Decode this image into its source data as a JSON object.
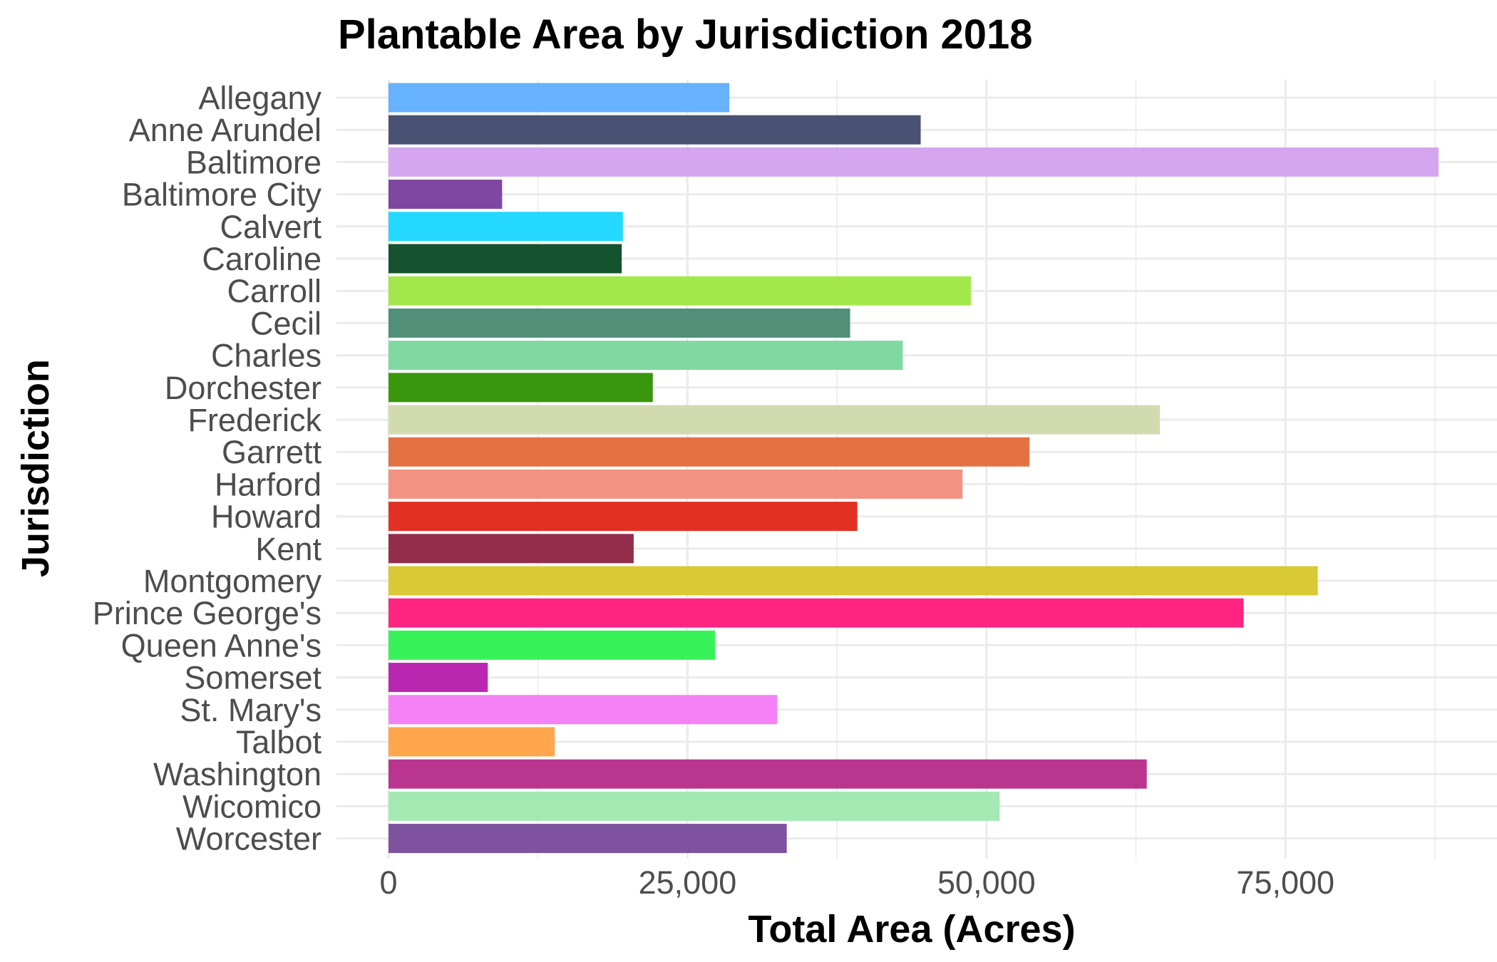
{
  "chart_data": {
    "type": "bar",
    "orientation": "horizontal",
    "title": "Plantable Area by Jurisdiction 2018",
    "xlabel": "Total Area (Acres)",
    "ylabel": "Jurisdiction",
    "xlim": [
      0,
      90000
    ],
    "xticks": [
      0,
      25000,
      50000,
      75000
    ],
    "xtick_labels": [
      "0",
      "25,000",
      "50,000",
      "75,000"
    ],
    "grid": true,
    "legend": "none",
    "categories": [
      "Allegany",
      "Anne Arundel",
      "Baltimore",
      "Baltimore City",
      "Calvert",
      "Caroline",
      "Carroll",
      "Cecil",
      "Charles",
      "Dorchester",
      "Frederick",
      "Garrett",
      "Harford",
      "Howard",
      "Kent",
      "Montgomery",
      "Prince George's",
      "Queen Anne's",
      "Somerset",
      "St. Mary's",
      "Talbot",
      "Washington",
      "Wicomico",
      "Worcester"
    ],
    "values": [
      28500,
      44500,
      87800,
      9500,
      19600,
      19500,
      48700,
      38600,
      43000,
      22100,
      64500,
      53600,
      48000,
      39200,
      20500,
      77700,
      71500,
      27300,
      8300,
      32500,
      13900,
      63400,
      51100,
      33300
    ],
    "colors": [
      "#66B2FF",
      "#4A5273",
      "#D5A6F0",
      "#7F47A0",
      "#24D8FF",
      "#14532D",
      "#A3E84B",
      "#518F78",
      "#81D9A1",
      "#3A960C",
      "#D2DBB0",
      "#E37142",
      "#F29282",
      "#E23123",
      "#922E4B",
      "#D9C935",
      "#FF2482",
      "#38F25A",
      "#B927B1",
      "#F481F5",
      "#FFA64D",
      "#B9358E",
      "#A4E8B2",
      "#7F529F"
    ]
  }
}
